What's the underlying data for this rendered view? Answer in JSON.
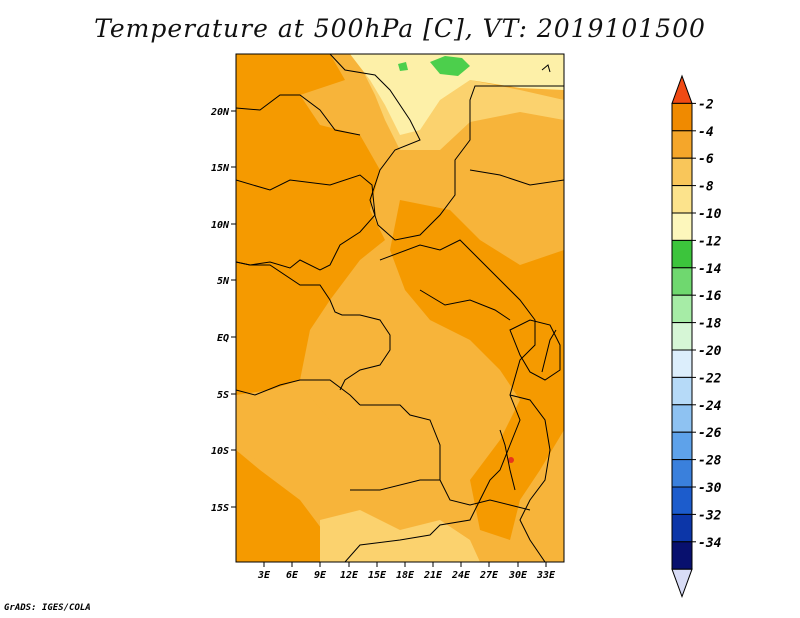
{
  "title": "Temperature at 500hPa [C], VT: 2019101500",
  "footer": "GrADS: IGES/COLA",
  "map": {
    "lon_ticks": [
      "3E",
      "6E",
      "9E",
      "12E",
      "15E",
      "18E",
      "21E",
      "24E",
      "27E",
      "30E",
      "33E"
    ],
    "lat_ticks": [
      "20N",
      "15N",
      "10N",
      "5N",
      "EQ",
      "5S",
      "10S",
      "15S"
    ],
    "field_colors": {
      "dark_orange": "#f59a00",
      "orange": "#f7b43a",
      "light_orange": "#fbd26e",
      "pale_yellow": "#fdf0a8",
      "green": "#4ccf4c",
      "red": "#e8341c"
    }
  },
  "colorbar": {
    "labels": [
      "-2",
      "-4",
      "-6",
      "-8",
      "-10",
      "-12",
      "-14",
      "-16",
      "-18",
      "-20",
      "-22",
      "-24",
      "-26",
      "-28",
      "-30",
      "-32",
      "-34"
    ],
    "colors": [
      "#f04a14",
      "#f08a00",
      "#f5a62a",
      "#f9c65a",
      "#fce38c",
      "#fdf7bc",
      "#3cc43c",
      "#6fd86f",
      "#a6eca6",
      "#d6f6d6",
      "#dceefc",
      "#b6daf8",
      "#8ec2f2",
      "#5ea2ea",
      "#3a80dc",
      "#1c5ccc",
      "#0c36a8",
      "#08106e",
      "#d8dcf6"
    ]
  }
}
